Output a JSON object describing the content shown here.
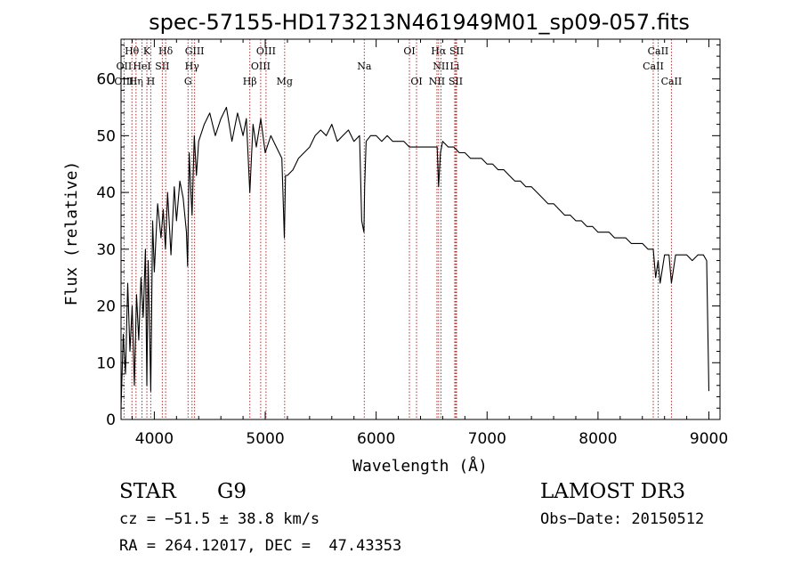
{
  "chart_data": {
    "type": "line",
    "title": "spec-57155-HD173213N461949M01_sp09-057.fits",
    "xlabel": "Wavelength (Å)",
    "ylabel": "Flux (relative)",
    "xlim": [
      3700,
      9100
    ],
    "ylim": [
      0,
      67
    ],
    "x_ticks": [
      4000,
      5000,
      6000,
      7000,
      8000,
      9000
    ],
    "y_ticks": [
      0,
      10,
      20,
      30,
      40,
      50,
      60
    ],
    "series": [
      {
        "name": "flux",
        "x": [
          3700,
          3720,
          3740,
          3760,
          3780,
          3800,
          3820,
          3840,
          3860,
          3880,
          3900,
          3920,
          3933,
          3945,
          3968,
          3985,
          4000,
          4030,
          4060,
          4080,
          4100,
          4120,
          4150,
          4180,
          4200,
          4230,
          4260,
          4290,
          4300,
          4315,
          4330,
          4340,
          4360,
          4380,
          4400,
          4450,
          4500,
          4550,
          4600,
          4650,
          4700,
          4750,
          4800,
          4830,
          4861,
          4890,
          4920,
          4960,
          5000,
          5050,
          5100,
          5150,
          5172,
          5183,
          5200,
          5250,
          5300,
          5350,
          5400,
          5450,
          5500,
          5550,
          5600,
          5650,
          5700,
          5750,
          5800,
          5850,
          5870,
          5890,
          5896,
          5910,
          5950,
          6000,
          6050,
          6100,
          6150,
          6200,
          6250,
          6300,
          6350,
          6400,
          6450,
          6500,
          6550,
          6563,
          6580,
          6600,
          6650,
          6700,
          6750,
          6800,
          6850,
          6900,
          6950,
          7000,
          7050,
          7100,
          7150,
          7200,
          7250,
          7300,
          7350,
          7400,
          7450,
          7500,
          7550,
          7600,
          7650,
          7700,
          7750,
          7800,
          7850,
          7900,
          7950,
          8000,
          8050,
          8100,
          8150,
          8200,
          8250,
          8300,
          8350,
          8400,
          8450,
          8498,
          8520,
          8542,
          8560,
          8600,
          8640,
          8662,
          8700,
          8750,
          8800,
          8850,
          8900,
          8950,
          8980,
          9000
        ],
        "y": [
          2,
          15,
          8,
          24,
          12,
          20,
          6,
          22,
          14,
          25,
          18,
          30,
          6,
          28,
          5,
          35,
          26,
          38,
          32,
          37,
          30,
          40,
          29,
          41,
          35,
          42,
          39,
          33,
          27,
          47,
          40,
          36,
          50,
          43,
          49,
          52,
          54,
          50,
          53,
          55,
          49,
          54,
          50,
          53,
          40,
          52,
          48,
          53,
          47,
          50,
          48,
          46,
          32,
          43,
          43,
          44,
          46,
          47,
          48,
          50,
          51,
          50,
          52,
          49,
          50,
          51,
          49,
          50,
          35,
          33,
          41,
          49,
          50,
          50,
          49,
          50,
          49,
          49,
          49,
          48,
          48,
          48,
          48,
          48,
          48,
          41,
          47,
          49,
          48,
          48,
          47,
          47,
          46,
          46,
          46,
          45,
          45,
          44,
          44,
          43,
          42,
          42,
          41,
          41,
          40,
          39,
          38,
          38,
          37,
          36,
          36,
          35,
          35,
          34,
          34,
          33,
          33,
          33,
          32,
          32,
          32,
          31,
          31,
          31,
          30,
          30,
          25,
          28,
          24,
          29,
          29,
          24,
          29,
          29,
          29,
          28,
          29,
          29,
          28,
          5
        ]
      }
    ],
    "line_markers": [
      {
        "label": "Hθ",
        "wavelength": 3798,
        "row": 1
      },
      {
        "label": "OII",
        "wavelength": 3727,
        "row": 2
      },
      {
        "label": "OIII",
        "wavelength": 3727,
        "row": 3
      },
      {
        "label": "Hη",
        "wavelength": 3835,
        "row": 3
      },
      {
        "label": "K",
        "wavelength": 3933,
        "row": 1
      },
      {
        "label": "HeI",
        "wavelength": 3889,
        "row": 2
      },
      {
        "label": "H",
        "wavelength": 3968,
        "row": 3
      },
      {
        "label": "SII",
        "wavelength": 4072,
        "row": 2
      },
      {
        "label": "Hδ",
        "wavelength": 4102,
        "row": 1
      },
      {
        "label": "GIII",
        "wavelength": 4363,
        "row": 1
      },
      {
        "label": "Hγ",
        "wavelength": 4340,
        "row": 2
      },
      {
        "label": "G",
        "wavelength": 4304,
        "row": 3
      },
      {
        "label": "Hβ",
        "wavelength": 4861,
        "row": 3
      },
      {
        "label": "OIII",
        "wavelength": 5007,
        "row": 1
      },
      {
        "label": "OIII",
        "wavelength": 4959,
        "row": 2
      },
      {
        "label": "Mg",
        "wavelength": 5175,
        "row": 3
      },
      {
        "label": "Na",
        "wavelength": 5893,
        "row": 2
      },
      {
        "label": "OI",
        "wavelength": 6300,
        "row": 1
      },
      {
        "label": "OI",
        "wavelength": 6364,
        "row": 3
      },
      {
        "label": "Hα",
        "wavelength": 6563,
        "row": 1
      },
      {
        "label": "SII",
        "wavelength": 6725,
        "row": 1
      },
      {
        "label": "NII",
        "wavelength": 6584,
        "row": 2
      },
      {
        "label": "Li",
        "wavelength": 6708,
        "row": 2
      },
      {
        "label": "NII",
        "wavelength": 6548,
        "row": 3
      },
      {
        "label": "SII",
        "wavelength": 6717,
        "row": 3
      },
      {
        "label": "CaII",
        "wavelength": 8542,
        "row": 1
      },
      {
        "label": "CaII",
        "wavelength": 8498,
        "row": 2
      },
      {
        "label": "CaII",
        "wavelength": 8662,
        "row": 3
      }
    ]
  },
  "info": {
    "object_type": "STAR",
    "subclass": "G9",
    "survey": "LAMOST DR3",
    "redshift_line": "cz = −51.5 ± 38.8 km/s",
    "obs_date": "Obs−Date: 20150512",
    "coords": "RA = 264.12017, DEC =  47.43353"
  }
}
